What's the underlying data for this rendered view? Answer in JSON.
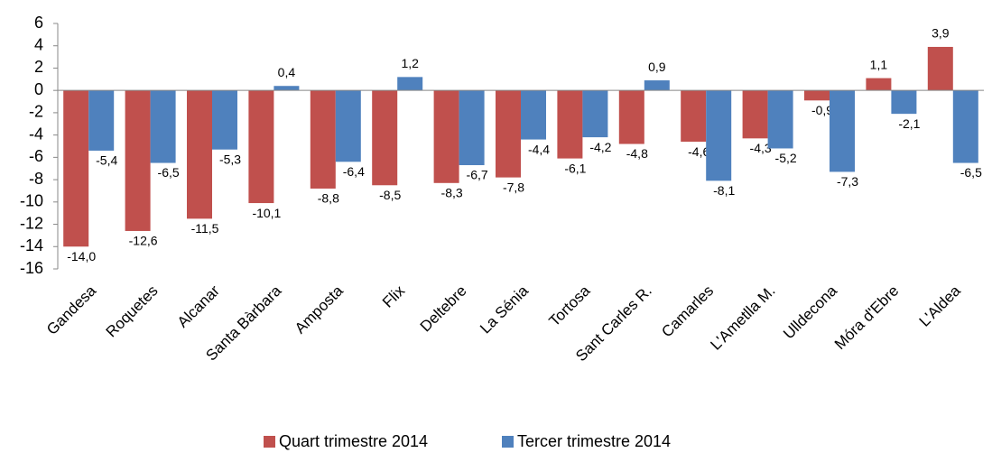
{
  "chart_data": {
    "type": "bar",
    "categories": [
      "Gandesa",
      "Roquetes",
      "Alcanar",
      "Santa Bàrbara",
      "Amposta",
      "Flix",
      "Deltebre",
      "La Sénia",
      "Tortosa",
      "Sant Carles R.",
      "Camarles",
      "L'Ametlla M.",
      "Ulldecona",
      "Móra d'Ebre",
      "L'Aldea"
    ],
    "series": [
      {
        "name": "Quart trimestre 2014",
        "color": "#c0504d",
        "values": [
          -14.0,
          -12.6,
          -11.5,
          -10.1,
          -8.8,
          -8.5,
          -8.3,
          -7.8,
          -6.1,
          -4.8,
          -4.6,
          -4.3,
          -0.9,
          1.1,
          3.9
        ],
        "value_labels": [
          "-14,0",
          "-12,6",
          "-11,5",
          "-10,1",
          "-8,8",
          "-8,5",
          "-8,3",
          "-7,8",
          "-6,1",
          "-4,8",
          "-4,6",
          "-4,3",
          "-0,9",
          "1,1",
          "3,9"
        ]
      },
      {
        "name": "Tercer trimestre 2014",
        "color": "#4f81bd",
        "values": [
          -5.4,
          -6.5,
          -5.3,
          0.4,
          -6.4,
          1.2,
          -6.7,
          -4.4,
          -4.2,
          0.9,
          -8.1,
          -5.2,
          -7.3,
          -2.1,
          -6.5
        ],
        "value_labels": [
          "-5,4",
          "-6,5",
          "-5,3",
          "0,4",
          "-6,4",
          "1,2",
          "-6,7",
          "-4,4",
          "-4,2",
          "0,9",
          "-8,1",
          "-5,2",
          "-7,3",
          "-2,1",
          "-6,5"
        ]
      }
    ],
    "ylim": [
      -16,
      6
    ],
    "yticks": [
      6,
      4,
      2,
      0,
      -2,
      -4,
      -6,
      -8,
      -10,
      -12,
      -14,
      -16
    ]
  }
}
